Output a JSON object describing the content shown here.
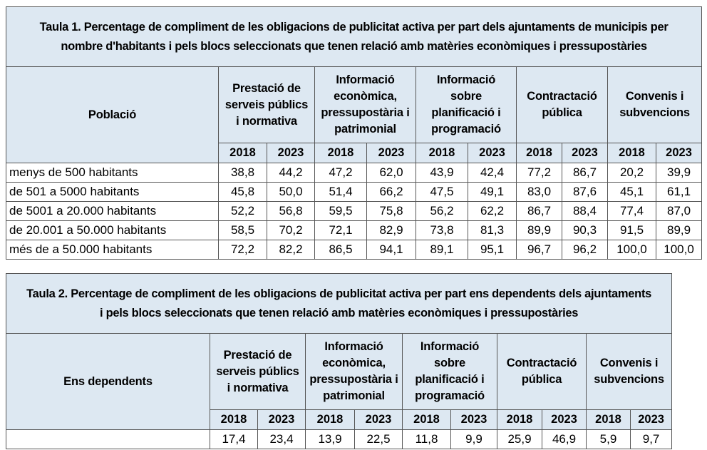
{
  "table1": {
    "title_line1": "Taula 1. Percentage de compliment de les obligacions de publicitat activa per part dels ajuntaments de municipis per",
    "title_line2": "nombre d'habitants i pels blocs seleccionats que tenen relació amb matèries econòmiques i pressupostàries",
    "row_header": "Població",
    "groups": [
      "Prestació de\nserveis públics\ni normativa",
      "Informació\neconòmica,\npressupostària i\npatrimonial",
      "Informació\nsobre\nplanificació i\nprogramació",
      "Contractació\npública",
      "Convenis i\nsubvencions"
    ],
    "years": [
      "2018",
      "2023"
    ],
    "rows": [
      {
        "label": "menys de 500 habitants",
        "values": [
          "38,8",
          "44,2",
          "47,2",
          "62,0",
          "43,9",
          "42,4",
          "77,2",
          "86,7",
          "20,2",
          "39,9"
        ]
      },
      {
        "label": "de 501 a 5000 habitants",
        "values": [
          "45,8",
          "50,0",
          "51,4",
          "66,2",
          "47,5",
          "49,1",
          "83,0",
          "87,6",
          "45,1",
          "61,1"
        ]
      },
      {
        "label": "de 5001 a 20.000 habitants",
        "values": [
          "52,2",
          "56,8",
          "59,5",
          "75,8",
          "56,2",
          "62,2",
          "86,7",
          "88,4",
          "77,4",
          "87,0"
        ]
      },
      {
        "label": "de 20.001 a 50.000 habitants",
        "values": [
          "58,5",
          "70,2",
          "72,1",
          "82,9",
          "73,8",
          "81,3",
          "89,9",
          "90,3",
          "91,5",
          "89,9"
        ]
      },
      {
        "label": "més de a 50.000 habitants",
        "values": [
          "72,2",
          "82,2",
          "86,5",
          "94,1",
          "89,1",
          "95,1",
          "96,7",
          "96,2",
          "100,0",
          "100,0"
        ]
      }
    ]
  },
  "table2": {
    "title_line1": "Taula 2. Percentage de compliment  de les obligacions de publicitat activa per part ens dependents dels ajuntaments",
    "title_line2": "i  pels blocs seleccionats que tenen relació amb matèries econòmiques i pressupostàries",
    "row_header": "Ens dependents",
    "groups": [
      "Prestació de\nserveis públics\ni normativa",
      "Informació\neconòmica,\npressupostària i\npatrimonial",
      "Informació\nsobre\nplanificació i\nprogramació",
      "Contractació\npública",
      "Convenis i\nsubvencions"
    ],
    "years": [
      "2018",
      "2023"
    ],
    "rows": [
      {
        "label": "",
        "values": [
          "17,4",
          "23,4",
          "13,9",
          "22,5",
          "11,8",
          "9,9",
          "25,9",
          "46,9",
          "5,9",
          "9,7"
        ]
      }
    ]
  }
}
